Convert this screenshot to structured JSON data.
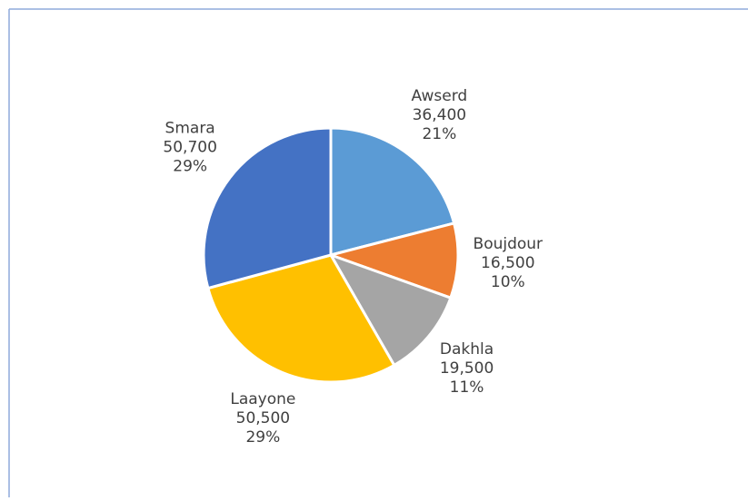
{
  "chart_data": {
    "type": "pie",
    "categories": [
      "Awserd",
      "Boujdour",
      "Dakhla",
      "Laayone",
      "Smara"
    ],
    "values": [
      36400,
      16500,
      19500,
      50500,
      50700
    ],
    "value_labels": [
      "36,400",
      "16,500",
      "19,500",
      "50,500",
      "50,700"
    ],
    "percent_labels": [
      "21%",
      "10%",
      "11%",
      "29%",
      "29%"
    ],
    "colors": [
      "#5b9bd5",
      "#ed7d31",
      "#a5a5a5",
      "#ffc000",
      "#4472c4"
    ]
  }
}
